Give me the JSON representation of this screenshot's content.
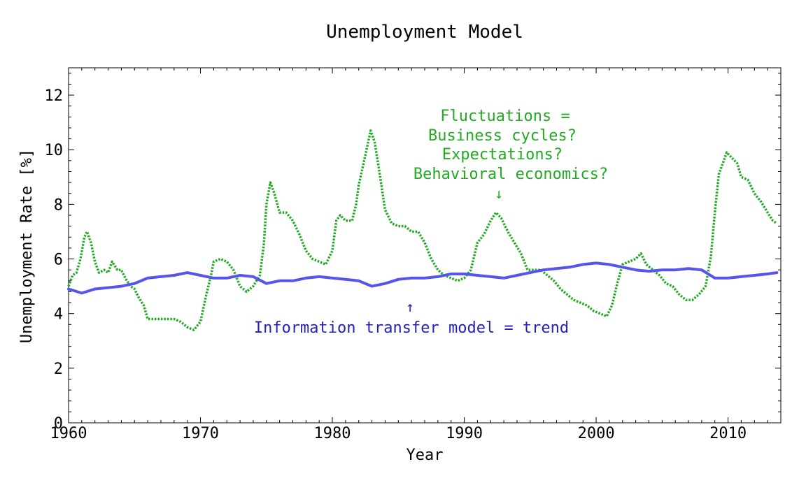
{
  "chart_data": {
    "type": "line",
    "title": "Unemployment Model",
    "xlabel": "Year",
    "ylabel": "Unemployment Rate [%]",
    "xlim": [
      1960,
      2014
    ],
    "ylim": [
      0,
      13
    ],
    "xticks": [
      1960,
      1970,
      1980,
      1990,
      2000,
      2010
    ],
    "yticks": [
      0,
      2,
      4,
      6,
      8,
      10,
      12
    ],
    "grid": false,
    "series": [
      {
        "name": "",
        "role": "fluctuations",
        "color": "#22aa22",
        "style": "dotted",
        "points": [
          [
            1960.0,
            5.0
          ],
          [
            1960.3,
            5.4
          ],
          [
            1960.6,
            5.5
          ],
          [
            1960.9,
            6.0
          ],
          [
            1961.2,
            6.8
          ],
          [
            1961.4,
            7.0
          ],
          [
            1961.7,
            6.6
          ],
          [
            1962.0,
            5.9
          ],
          [
            1962.3,
            5.5
          ],
          [
            1962.7,
            5.6
          ],
          [
            1963.0,
            5.5
          ],
          [
            1963.3,
            5.9
          ],
          [
            1963.7,
            5.6
          ],
          [
            1964.0,
            5.6
          ],
          [
            1964.3,
            5.3
          ],
          [
            1964.7,
            5.0
          ],
          [
            1965.0,
            4.9
          ],
          [
            1965.3,
            4.6
          ],
          [
            1965.7,
            4.3
          ],
          [
            1966.0,
            3.8
          ],
          [
            1966.5,
            3.8
          ],
          [
            1967.0,
            3.8
          ],
          [
            1967.5,
            3.8
          ],
          [
            1968.0,
            3.8
          ],
          [
            1968.5,
            3.7
          ],
          [
            1969.0,
            3.5
          ],
          [
            1969.5,
            3.4
          ],
          [
            1970.0,
            3.7
          ],
          [
            1970.4,
            4.6
          ],
          [
            1970.8,
            5.4
          ],
          [
            1971.0,
            5.9
          ],
          [
            1971.5,
            6.0
          ],
          [
            1972.0,
            5.9
          ],
          [
            1972.5,
            5.6
          ],
          [
            1973.0,
            5.0
          ],
          [
            1973.5,
            4.8
          ],
          [
            1974.0,
            5.0
          ],
          [
            1974.5,
            5.4
          ],
          [
            1974.8,
            6.5
          ],
          [
            1975.0,
            8.0
          ],
          [
            1975.3,
            8.8
          ],
          [
            1975.6,
            8.4
          ],
          [
            1976.0,
            7.7
          ],
          [
            1976.5,
            7.7
          ],
          [
            1977.0,
            7.4
          ],
          [
            1977.5,
            6.9
          ],
          [
            1978.0,
            6.3
          ],
          [
            1978.5,
            6.0
          ],
          [
            1979.0,
            5.9
          ],
          [
            1979.5,
            5.8
          ],
          [
            1980.0,
            6.3
          ],
          [
            1980.3,
            7.4
          ],
          [
            1980.6,
            7.6
          ],
          [
            1981.0,
            7.4
          ],
          [
            1981.5,
            7.4
          ],
          [
            1981.8,
            8.0
          ],
          [
            1982.0,
            8.7
          ],
          [
            1982.5,
            9.8
          ],
          [
            1982.9,
            10.7
          ],
          [
            1983.2,
            10.3
          ],
          [
            1983.5,
            9.4
          ],
          [
            1984.0,
            7.8
          ],
          [
            1984.5,
            7.3
          ],
          [
            1985.0,
            7.2
          ],
          [
            1985.5,
            7.2
          ],
          [
            1986.0,
            7.0
          ],
          [
            1986.5,
            7.0
          ],
          [
            1987.0,
            6.6
          ],
          [
            1987.5,
            6.0
          ],
          [
            1988.0,
            5.6
          ],
          [
            1988.5,
            5.4
          ],
          [
            1989.0,
            5.3
          ],
          [
            1989.5,
            5.2
          ],
          [
            1990.0,
            5.3
          ],
          [
            1990.5,
            5.6
          ],
          [
            1991.0,
            6.6
          ],
          [
            1991.5,
            6.9
          ],
          [
            1992.0,
            7.4
          ],
          [
            1992.4,
            7.7
          ],
          [
            1992.8,
            7.5
          ],
          [
            1993.3,
            7.0
          ],
          [
            1993.8,
            6.6
          ],
          [
            1994.3,
            6.2
          ],
          [
            1994.8,
            5.6
          ],
          [
            1995.3,
            5.6
          ],
          [
            1995.8,
            5.6
          ],
          [
            1996.3,
            5.4
          ],
          [
            1996.8,
            5.2
          ],
          [
            1997.3,
            4.9
          ],
          [
            1997.8,
            4.7
          ],
          [
            1998.3,
            4.5
          ],
          [
            1998.8,
            4.4
          ],
          [
            1999.3,
            4.3
          ],
          [
            1999.8,
            4.1
          ],
          [
            2000.3,
            4.0
          ],
          [
            2000.8,
            3.9
          ],
          [
            2001.2,
            4.3
          ],
          [
            2001.6,
            5.1
          ],
          [
            2002.0,
            5.8
          ],
          [
            2002.5,
            5.9
          ],
          [
            2003.0,
            6.0
          ],
          [
            2003.4,
            6.2
          ],
          [
            2003.8,
            5.8
          ],
          [
            2004.3,
            5.6
          ],
          [
            2004.8,
            5.4
          ],
          [
            2005.3,
            5.1
          ],
          [
            2005.8,
            5.0
          ],
          [
            2006.3,
            4.7
          ],
          [
            2006.8,
            4.5
          ],
          [
            2007.3,
            4.5
          ],
          [
            2007.8,
            4.7
          ],
          [
            2008.3,
            5.0
          ],
          [
            2008.7,
            6.1
          ],
          [
            2009.0,
            7.7
          ],
          [
            2009.3,
            9.1
          ],
          [
            2009.6,
            9.5
          ],
          [
            2009.9,
            9.9
          ],
          [
            2010.3,
            9.7
          ],
          [
            2010.7,
            9.5
          ],
          [
            2011.0,
            9.0
          ],
          [
            2011.5,
            8.9
          ],
          [
            2012.0,
            8.4
          ],
          [
            2012.5,
            8.1
          ],
          [
            2013.0,
            7.7
          ],
          [
            2013.4,
            7.4
          ],
          [
            2013.7,
            7.3
          ]
        ]
      },
      {
        "name": "",
        "role": "trend",
        "color": "#5555ee",
        "style": "solid",
        "points": [
          [
            1960.0,
            4.9
          ],
          [
            1961.0,
            4.75
          ],
          [
            1962.0,
            4.9
          ],
          [
            1963.0,
            4.95
          ],
          [
            1964.0,
            5.0
          ],
          [
            1965.0,
            5.1
          ],
          [
            1966.0,
            5.3
          ],
          [
            1967.0,
            5.35
          ],
          [
            1968.0,
            5.4
          ],
          [
            1969.0,
            5.5
          ],
          [
            1970.0,
            5.4
          ],
          [
            1971.0,
            5.3
          ],
          [
            1972.0,
            5.3
          ],
          [
            1973.0,
            5.4
          ],
          [
            1974.0,
            5.35
          ],
          [
            1975.0,
            5.1
          ],
          [
            1976.0,
            5.2
          ],
          [
            1977.0,
            5.2
          ],
          [
            1978.0,
            5.3
          ],
          [
            1979.0,
            5.35
          ],
          [
            1980.0,
            5.3
          ],
          [
            1981.0,
            5.25
          ],
          [
            1982.0,
            5.2
          ],
          [
            1983.0,
            5.0
          ],
          [
            1984.0,
            5.1
          ],
          [
            1985.0,
            5.25
          ],
          [
            1986.0,
            5.3
          ],
          [
            1987.0,
            5.3
          ],
          [
            1988.0,
            5.35
          ],
          [
            1989.0,
            5.45
          ],
          [
            1990.0,
            5.45
          ],
          [
            1991.0,
            5.4
          ],
          [
            1992.0,
            5.35
          ],
          [
            1993.0,
            5.3
          ],
          [
            1994.0,
            5.4
          ],
          [
            1995.0,
            5.5
          ],
          [
            1996.0,
            5.6
          ],
          [
            1997.0,
            5.65
          ],
          [
            1998.0,
            5.7
          ],
          [
            1999.0,
            5.8
          ],
          [
            2000.0,
            5.85
          ],
          [
            2001.0,
            5.8
          ],
          [
            2002.0,
            5.7
          ],
          [
            2003.0,
            5.6
          ],
          [
            2004.0,
            5.55
          ],
          [
            2005.0,
            5.6
          ],
          [
            2006.0,
            5.6
          ],
          [
            2007.0,
            5.65
          ],
          [
            2008.0,
            5.6
          ],
          [
            2009.0,
            5.3
          ],
          [
            2010.0,
            5.3
          ],
          [
            2011.0,
            5.35
          ],
          [
            2012.0,
            5.4
          ],
          [
            2013.0,
            5.45
          ],
          [
            2013.7,
            5.5
          ]
        ]
      }
    ],
    "annotations": [
      {
        "id": "fluctuations",
        "lines": [
          "Fluctuations =",
          "Business cycles?",
          "Expectations?",
          "Behavioral economics?"
        ],
        "arrow": "↓",
        "color": "#22aa22"
      },
      {
        "id": "trend",
        "lines": [
          "Information transfer model = trend"
        ],
        "arrow": "↑",
        "color": "#2222bb"
      }
    ]
  }
}
